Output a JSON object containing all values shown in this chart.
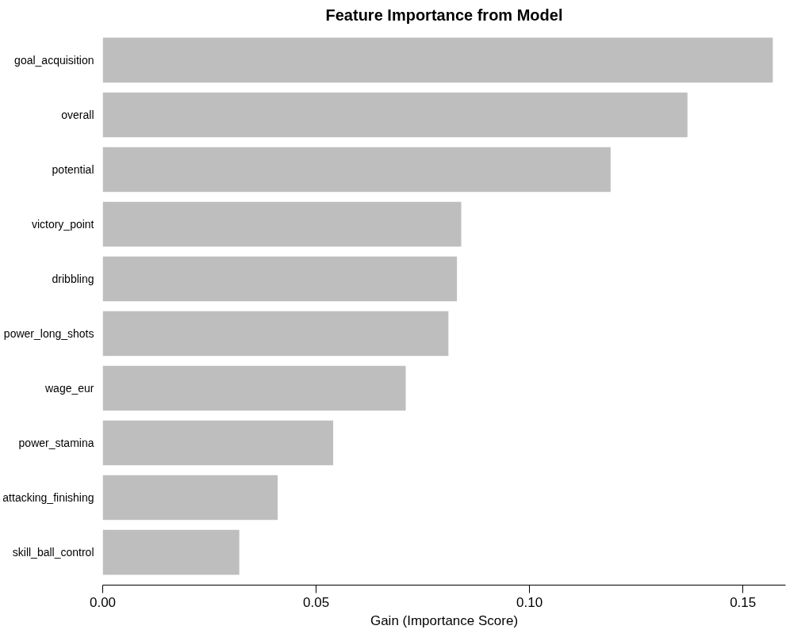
{
  "chart_data": {
    "type": "bar",
    "orientation": "horizontal",
    "title": "Feature Importance from Model",
    "xlabel": "Gain (Importance Score)",
    "categories": [
      "goal_acquisition",
      "overall",
      "potential",
      "victory_point",
      "dribbling",
      "power_long_shots",
      "wage_eur",
      "power_stamina",
      "attacking_finishing",
      "skill_ball_control"
    ],
    "values": [
      0.157,
      0.137,
      0.119,
      0.084,
      0.083,
      0.081,
      0.071,
      0.054,
      0.041,
      0.032
    ],
    "color": "#bebebe",
    "xlim": [
      0,
      0.16
    ],
    "xticks": [
      {
        "value": 0,
        "label": "0.00"
      },
      {
        "value": 0.05,
        "label": "0.05"
      },
      {
        "value": 0.1,
        "label": "0.10"
      },
      {
        "value": 0.15,
        "label": "0.15"
      }
    ],
    "grid": false
  }
}
